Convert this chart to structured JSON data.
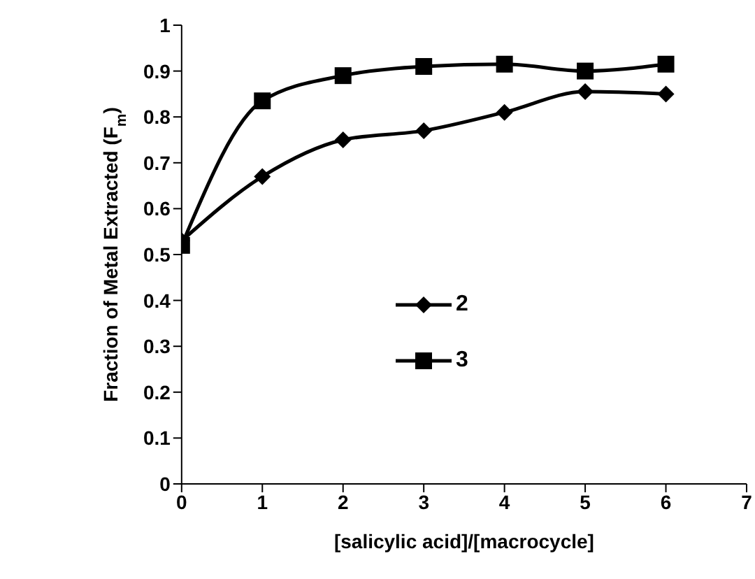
{
  "chart_data": {
    "type": "line",
    "xlabel": "[salicylic acid]/[macrocycle]",
    "ylabel": "Fraction of Metal Extracted (F$_{m}$)",
    "x": [
      0,
      1,
      2,
      3,
      4,
      5,
      6
    ],
    "xlim": [
      0,
      7
    ],
    "xticks": [
      0,
      1,
      2,
      3,
      4,
      5,
      6,
      7
    ],
    "ylim": [
      0,
      1
    ],
    "yticks": [
      0,
      0.1,
      0.2,
      0.3,
      0.4,
      0.5,
      0.6,
      0.7,
      0.8,
      0.9,
      1
    ],
    "grid": false,
    "legend": "center",
    "line_style": "solid",
    "series": [
      {
        "name": "2",
        "color": "#000000",
        "marker": "diamond",
        "values": [
          0.53,
          0.67,
          0.75,
          0.77,
          0.81,
          0.855,
          0.85
        ]
      },
      {
        "name": "3",
        "color": "#000000",
        "marker": "square",
        "values": [
          0.52,
          0.835,
          0.89,
          0.91,
          0.915,
          0.9,
          0.915
        ]
      }
    ]
  }
}
